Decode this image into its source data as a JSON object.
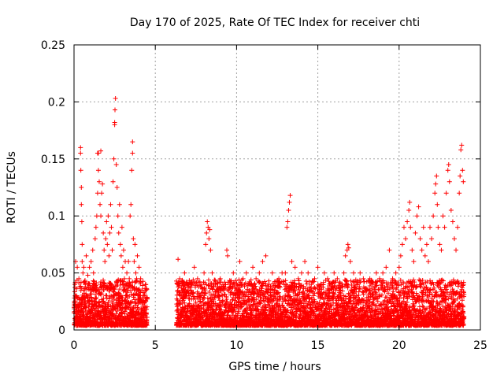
{
  "chart_data": {
    "type": "scatter",
    "title": "Day 170 of 2025, Rate Of TEC Index for receiver chti",
    "xlabel": "GPS time / hours",
    "ylabel": "ROTI / TECUs",
    "xlim": [
      0,
      25
    ],
    "ylim": [
      0,
      0.25
    ],
    "xticks": [
      0,
      5,
      10,
      15,
      20,
      25
    ],
    "xtick_labels": [
      "0",
      "5",
      "10",
      "15",
      "20",
      "25"
    ],
    "yticks": [
      0,
      0.05,
      0.1,
      0.15,
      0.2,
      0.25
    ],
    "ytick_labels": [
      "0",
      "0.05",
      "0.1",
      "0.15",
      "0.2",
      "0.25"
    ],
    "grid": true,
    "marker": "plus",
    "color": "#ff0000",
    "series": [
      {
        "points": [
          [
            0.0,
            0.015
          ],
          [
            0.05,
            0.04
          ],
          [
            0.1,
            0.06
          ],
          [
            0.15,
            0.03
          ],
          [
            0.2,
            0.055
          ],
          [
            0.25,
            0.02
          ],
          [
            0.3,
            0.045
          ],
          [
            0.35,
            0.012
          ],
          [
            0.4,
            0.16
          ],
          [
            0.4,
            0.155
          ],
          [
            0.42,
            0.14
          ],
          [
            0.45,
            0.125
          ],
          [
            0.45,
            0.11
          ],
          [
            0.48,
            0.095
          ],
          [
            0.5,
            0.075
          ],
          [
            0.5,
            0.06
          ],
          [
            0.55,
            0.05
          ],
          [
            0.6,
            0.035
          ],
          [
            0.6,
            0.055
          ],
          [
            0.65,
            0.025
          ],
          [
            0.7,
            0.04
          ],
          [
            0.75,
            0.065
          ],
          [
            0.8,
            0.03
          ],
          [
            0.85,
            0.048
          ],
          [
            0.9,
            0.02
          ],
          [
            0.95,
            0.055
          ],
          [
            1.0,
            0.035
          ],
          [
            1.05,
            0.06
          ],
          [
            1.1,
            0.025
          ],
          [
            1.15,
            0.07
          ],
          [
            1.2,
            0.05
          ],
          [
            1.25,
            0.04
          ],
          [
            1.3,
            0.08
          ],
          [
            1.35,
            0.09
          ],
          [
            1.4,
            0.1
          ],
          [
            1.45,
            0.12
          ],
          [
            1.45,
            0.155
          ],
          [
            1.5,
            0.155
          ],
          [
            1.5,
            0.14
          ],
          [
            1.55,
            0.13
          ],
          [
            1.6,
            0.11
          ],
          [
            1.65,
            0.1
          ],
          [
            1.65,
            0.157
          ],
          [
            1.7,
            0.12
          ],
          [
            1.75,
            0.128
          ],
          [
            1.8,
            0.085
          ],
          [
            1.85,
            0.07
          ],
          [
            1.9,
            0.06
          ],
          [
            1.95,
            0.08
          ],
          [
            2.0,
            0.095
          ],
          [
            2.05,
            0.075
          ],
          [
            2.1,
            0.1
          ],
          [
            2.15,
            0.065
          ],
          [
            2.2,
            0.085
          ],
          [
            2.25,
            0.11
          ],
          [
            2.3,
            0.09
          ],
          [
            2.35,
            0.07
          ],
          [
            2.4,
            0.13
          ],
          [
            2.45,
            0.15
          ],
          [
            2.5,
            0.182
          ],
          [
            2.5,
            0.18
          ],
          [
            2.52,
            0.193
          ],
          [
            2.55,
            0.203
          ],
          [
            2.6,
            0.145
          ],
          [
            2.65,
            0.125
          ],
          [
            2.7,
            0.1
          ],
          [
            2.75,
            0.085
          ],
          [
            2.8,
            0.11
          ],
          [
            2.85,
            0.075
          ],
          [
            2.9,
            0.065
          ],
          [
            2.95,
            0.09
          ],
          [
            3.0,
            0.055
          ],
          [
            3.05,
            0.07
          ],
          [
            3.1,
            0.045
          ],
          [
            3.15,
            0.06
          ],
          [
            3.2,
            0.04
          ],
          [
            3.25,
            0.05
          ],
          [
            3.3,
            0.035
          ],
          [
            3.35,
            0.06
          ],
          [
            3.4,
            0.045
          ],
          [
            3.45,
            0.1
          ],
          [
            3.5,
            0.11
          ],
          [
            3.55,
            0.14
          ],
          [
            3.6,
            0.155
          ],
          [
            3.6,
            0.165
          ],
          [
            3.65,
            0.08
          ],
          [
            3.7,
            0.06
          ],
          [
            3.75,
            0.075
          ],
          [
            3.8,
            0.05
          ],
          [
            3.85,
            0.045
          ],
          [
            3.9,
            0.065
          ],
          [
            3.95,
            0.035
          ],
          [
            4.0,
            0.055
          ],
          [
            4.05,
            0.03
          ],
          [
            4.1,
            0.045
          ],
          [
            4.15,
            0.025
          ],
          [
            4.2,
            0.035
          ],
          [
            4.25,
            0.02
          ],
          [
            4.3,
            0.03
          ],
          [
            4.35,
            0.018
          ],
          [
            4.4,
            0.025
          ],
          [
            4.45,
            0.015
          ],
          [
            6.4,
            0.062
          ],
          [
            6.5,
            0.045
          ],
          [
            6.6,
            0.03
          ],
          [
            6.8,
            0.05
          ],
          [
            7.0,
            0.04
          ],
          [
            7.2,
            0.035
          ],
          [
            7.4,
            0.055
          ],
          [
            7.6,
            0.045
          ],
          [
            7.8,
            0.03
          ],
          [
            8.0,
            0.05
          ],
          [
            8.1,
            0.075
          ],
          [
            8.15,
            0.085
          ],
          [
            8.2,
            0.095
          ],
          [
            8.25,
            0.09
          ],
          [
            8.3,
            0.08
          ],
          [
            8.35,
            0.088
          ],
          [
            8.4,
            0.07
          ],
          [
            8.5,
            0.05
          ],
          [
            8.7,
            0.04
          ],
          [
            9.0,
            0.045
          ],
          [
            9.2,
            0.035
          ],
          [
            9.4,
            0.07
          ],
          [
            9.45,
            0.065
          ],
          [
            9.6,
            0.04
          ],
          [
            9.8,
            0.05
          ],
          [
            10.0,
            0.035
          ],
          [
            10.2,
            0.06
          ],
          [
            10.4,
            0.045
          ],
          [
            10.6,
            0.05
          ],
          [
            10.8,
            0.04
          ],
          [
            11.0,
            0.055
          ],
          [
            11.2,
            0.045
          ],
          [
            11.4,
            0.05
          ],
          [
            11.6,
            0.06
          ],
          [
            11.8,
            0.065
          ],
          [
            12.0,
            0.04
          ],
          [
            12.2,
            0.05
          ],
          [
            12.4,
            0.035
          ],
          [
            12.6,
            0.045
          ],
          [
            12.8,
            0.05
          ],
          [
            13.0,
            0.05
          ],
          [
            13.1,
            0.09
          ],
          [
            13.15,
            0.095
          ],
          [
            13.2,
            0.105
          ],
          [
            13.25,
            0.112
          ],
          [
            13.3,
            0.118
          ],
          [
            13.4,
            0.06
          ],
          [
            13.6,
            0.055
          ],
          [
            13.8,
            0.045
          ],
          [
            14.0,
            0.05
          ],
          [
            14.2,
            0.06
          ],
          [
            14.4,
            0.05
          ],
          [
            14.6,
            0.04
          ],
          [
            14.8,
            0.045
          ],
          [
            15.0,
            0.055
          ],
          [
            15.2,
            0.04
          ],
          [
            15.4,
            0.05
          ],
          [
            15.6,
            0.045
          ],
          [
            15.8,
            0.04
          ],
          [
            16.0,
            0.05
          ],
          [
            16.2,
            0.045
          ],
          [
            16.4,
            0.035
          ],
          [
            16.6,
            0.05
          ],
          [
            16.7,
            0.065
          ],
          [
            16.8,
            0.07
          ],
          [
            16.85,
            0.075
          ],
          [
            16.9,
            0.072
          ],
          [
            17.0,
            0.06
          ],
          [
            17.2,
            0.05
          ],
          [
            17.4,
            0.04
          ],
          [
            17.6,
            0.05
          ],
          [
            17.8,
            0.045
          ],
          [
            18.0,
            0.035
          ],
          [
            18.2,
            0.045
          ],
          [
            18.4,
            0.04
          ],
          [
            18.6,
            0.05
          ],
          [
            18.8,
            0.045
          ],
          [
            19.0,
            0.05
          ],
          [
            19.2,
            0.055
          ],
          [
            19.4,
            0.07
          ],
          [
            19.6,
            0.045
          ],
          [
            19.8,
            0.05
          ],
          [
            20.0,
            0.055
          ],
          [
            20.1,
            0.065
          ],
          [
            20.2,
            0.075
          ],
          [
            20.3,
            0.09
          ],
          [
            20.4,
            0.08
          ],
          [
            20.5,
            0.095
          ],
          [
            20.6,
            0.105
          ],
          [
            20.65,
            0.112
          ],
          [
            20.7,
            0.09
          ],
          [
            20.8,
            0.07
          ],
          [
            20.9,
            0.06
          ],
          [
            21.0,
            0.085
          ],
          [
            21.1,
            0.1
          ],
          [
            21.2,
            0.108
          ],
          [
            21.3,
            0.08
          ],
          [
            21.4,
            0.07
          ],
          [
            21.5,
            0.09
          ],
          [
            21.6,
            0.065
          ],
          [
            21.7,
            0.075
          ],
          [
            21.8,
            0.06
          ],
          [
            21.9,
            0.09
          ],
          [
            22.0,
            0.08
          ],
          [
            22.1,
            0.1
          ],
          [
            22.2,
            0.12
          ],
          [
            22.25,
            0.128
          ],
          [
            22.3,
            0.135
          ],
          [
            22.35,
            0.11
          ],
          [
            22.4,
            0.09
          ],
          [
            22.5,
            0.075
          ],
          [
            22.6,
            0.07
          ],
          [
            22.7,
            0.1
          ],
          [
            22.8,
            0.09
          ],
          [
            22.9,
            0.12
          ],
          [
            23.0,
            0.14
          ],
          [
            23.05,
            0.145
          ],
          [
            23.1,
            0.13
          ],
          [
            23.2,
            0.105
          ],
          [
            23.3,
            0.095
          ],
          [
            23.4,
            0.08
          ],
          [
            23.5,
            0.07
          ],
          [
            23.6,
            0.09
          ],
          [
            23.7,
            0.12
          ],
          [
            23.75,
            0.135
          ],
          [
            23.8,
            0.158
          ],
          [
            23.85,
            0.162
          ],
          [
            23.9,
            0.14
          ],
          [
            23.95,
            0.13
          ]
        ]
      }
    ]
  }
}
